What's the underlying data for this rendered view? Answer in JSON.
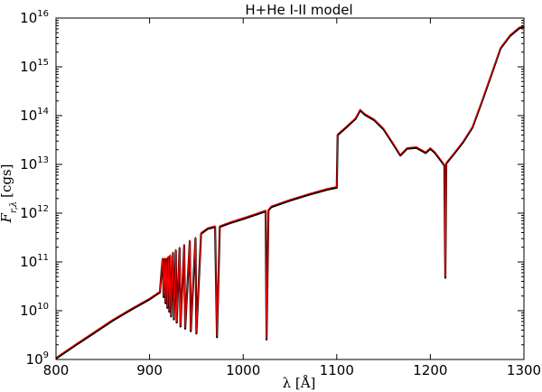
{
  "chart_data": {
    "type": "line",
    "title": "H+He I-II model",
    "xlabel": "λ [Å]",
    "ylabel": "F_{r,λ} [cgs]",
    "ylabel_parts": {
      "main": "F",
      "sub": "r,λ",
      "unit": "[cgs]"
    },
    "xlim": [
      800,
      1300
    ],
    "ylim": [
      1000000000.0,
      1e+16
    ],
    "y_scale": "log",
    "grid": false,
    "x_ticks": [
      800,
      900,
      1000,
      1100,
      1200,
      1300
    ],
    "x_tick_labels": [
      "800",
      "900",
      "1000",
      "1100",
      "1200",
      "1300"
    ],
    "y_ticks": [
      1000000000.0,
      10000000000.0,
      100000000000.0,
      1000000000000.0,
      10000000000000.0,
      100000000000000.0,
      1000000000000000.0,
      1e+16
    ],
    "y_tick_labels": [
      {
        "base": "10",
        "exp": "9"
      },
      {
        "base": "10",
        "exp": "10"
      },
      {
        "base": "10",
        "exp": "11"
      },
      {
        "base": "10",
        "exp": "12"
      },
      {
        "base": "10",
        "exp": "13"
      },
      {
        "base": "10",
        "exp": "14"
      },
      {
        "base": "10",
        "exp": "15"
      },
      {
        "base": "10",
        "exp": "16"
      }
    ],
    "series": [
      {
        "color": "#000000",
        "points": [
          [
            800,
            1100000000.0
          ],
          [
            820,
            2000000000.0
          ],
          [
            840,
            3600000000.0
          ],
          [
            860,
            6500000000.0
          ],
          [
            880,
            11000000000.0
          ],
          [
            900,
            18000000000.0
          ],
          [
            911,
            25000000000.0
          ],
          [
            913,
            80000000000.0
          ],
          [
            914,
            120000000000.0
          ],
          [
            915,
            20000000000.0
          ],
          [
            916,
            120000000000.0
          ],
          [
            917,
            15000000000.0
          ],
          [
            918,
            120000000000.0
          ],
          [
            919,
            12000000000.0
          ],
          [
            920,
            130000000000.0
          ],
          [
            921,
            10000000000.0
          ],
          [
            922,
            140000000000.0
          ],
          [
            923,
            8000000000.0
          ],
          [
            925,
            160000000000.0
          ],
          [
            926,
            7000000000.0
          ],
          [
            928,
            180000000000.0
          ],
          [
            929,
            6000000000.0
          ],
          [
            932,
            200000000000.0
          ],
          [
            933,
            5000000000.0
          ],
          [
            937,
            230000000000.0
          ],
          [
            938,
            4500000000.0
          ],
          [
            943,
            280000000000.0
          ],
          [
            944,
            4000000000.0
          ],
          [
            949,
            320000000000.0
          ],
          [
            950,
            3600000000.0
          ],
          [
            955,
            400000000000.0
          ],
          [
            962,
            500000000000.0
          ],
          [
            970,
            550000000000.0
          ],
          [
            972,
            3000000000.0
          ],
          [
            975,
            550000000000.0
          ],
          [
            985,
            650000000000.0
          ],
          [
            1000,
            800000000000.0
          ],
          [
            1015,
            1000000000000.0
          ],
          [
            1024,
            1150000000000.0
          ],
          [
            1025,
            2700000000.0
          ],
          [
            1027,
            1200000000000.0
          ],
          [
            1030,
            1400000000000.0
          ],
          [
            1050,
            1900000000000.0
          ],
          [
            1070,
            2500000000000.0
          ],
          [
            1090,
            3200000000000.0
          ],
          [
            1100,
            3500000000000.0
          ],
          [
            1101,
            42000000000000.0
          ],
          [
            1110,
            60000000000000.0
          ],
          [
            1120,
            90000000000000.0
          ],
          [
            1125,
            135000000000000.0
          ],
          [
            1130,
            110000000000000.0
          ],
          [
            1140,
            85000000000000.0
          ],
          [
            1150,
            55000000000000.0
          ],
          [
            1160,
            28000000000000.0
          ],
          [
            1168,
            16000000000000.0
          ],
          [
            1175,
            22000000000000.0
          ],
          [
            1185,
            23000000000000.0
          ],
          [
            1195,
            18000000000000.0
          ],
          [
            1200,
            22000000000000.0
          ],
          [
            1205,
            18000000000000.0
          ],
          [
            1212,
            12000000000000.0
          ],
          [
            1215,
            10000000000000.0
          ],
          [
            1216,
            50000000000.0
          ],
          [
            1217,
            11000000000000.0
          ],
          [
            1225,
            17000000000000.0
          ],
          [
            1235,
            30000000000000.0
          ],
          [
            1245,
            60000000000000.0
          ],
          [
            1255,
            200000000000000.0
          ],
          [
            1265,
            700000000000000.0
          ],
          [
            1275,
            2500000000000000.0
          ],
          [
            1285,
            4500000000000000.0
          ],
          [
            1295,
            6500000000000000.0
          ],
          [
            1300,
            7000000000000000.0
          ]
        ]
      },
      {
        "color": "#ff0000",
        "points": [
          [
            800,
            1100000000.0
          ],
          [
            820,
            2000000000.0
          ],
          [
            840,
            3600000000.0
          ],
          [
            860,
            6500000000.0
          ],
          [
            880,
            11000000000.0
          ],
          [
            900,
            18000000000.0
          ],
          [
            911,
            25000000000.0
          ],
          [
            913,
            80000000000.0
          ],
          [
            914,
            120000000000.0
          ],
          [
            915,
            20000000000.0
          ],
          [
            916,
            120000000000.0
          ],
          [
            917,
            15000000000.0
          ],
          [
            918,
            120000000000.0
          ],
          [
            919,
            12000000000.0
          ],
          [
            920,
            130000000000.0
          ],
          [
            921,
            10000000000.0
          ],
          [
            922,
            140000000000.0
          ],
          [
            923,
            8000000000.0
          ],
          [
            925,
            160000000000.0
          ],
          [
            926,
            7000000000.0
          ],
          [
            928,
            180000000000.0
          ],
          [
            929,
            6000000000.0
          ],
          [
            932,
            200000000000.0
          ],
          [
            933,
            5000000000.0
          ],
          [
            937,
            230000000000.0
          ],
          [
            938,
            4500000000.0
          ],
          [
            943,
            280000000000.0
          ],
          [
            944,
            4000000000.0
          ],
          [
            949,
            320000000000.0
          ],
          [
            950,
            3600000000.0
          ],
          [
            955,
            400000000000.0
          ],
          [
            962,
            500000000000.0
          ],
          [
            970,
            550000000000.0
          ],
          [
            972,
            3000000000.0
          ],
          [
            975,
            550000000000.0
          ],
          [
            985,
            650000000000.0
          ],
          [
            1000,
            800000000000.0
          ],
          [
            1015,
            1000000000000.0
          ],
          [
            1024,
            1150000000000.0
          ],
          [
            1025,
            2700000000.0
          ],
          [
            1027,
            1200000000000.0
          ],
          [
            1030,
            1400000000000.0
          ],
          [
            1050,
            1900000000000.0
          ],
          [
            1070,
            2500000000000.0
          ],
          [
            1090,
            3200000000000.0
          ],
          [
            1100,
            3500000000000.0
          ],
          [
            1101,
            42000000000000.0
          ],
          [
            1110,
            60000000000000.0
          ],
          [
            1120,
            90000000000000.0
          ],
          [
            1125,
            135000000000000.0
          ],
          [
            1130,
            110000000000000.0
          ],
          [
            1140,
            85000000000000.0
          ],
          [
            1150,
            55000000000000.0
          ],
          [
            1160,
            28000000000000.0
          ],
          [
            1168,
            16000000000000.0
          ],
          [
            1175,
            22000000000000.0
          ],
          [
            1185,
            23000000000000.0
          ],
          [
            1195,
            18000000000000.0
          ],
          [
            1200,
            22000000000000.0
          ],
          [
            1205,
            18000000000000.0
          ],
          [
            1212,
            12000000000000.0
          ],
          [
            1215,
            10000000000000.0
          ],
          [
            1216,
            50000000000.0
          ],
          [
            1217,
            11000000000000.0
          ],
          [
            1225,
            17000000000000.0
          ],
          [
            1235,
            30000000000000.0
          ],
          [
            1245,
            60000000000000.0
          ],
          [
            1255,
            200000000000000.0
          ],
          [
            1265,
            700000000000000.0
          ],
          [
            1275,
            2500000000000000.0
          ],
          [
            1285,
            4500000000000000.0
          ],
          [
            1295,
            6500000000000000.0
          ],
          [
            1300,
            7000000000000000.0
          ]
        ]
      }
    ]
  }
}
